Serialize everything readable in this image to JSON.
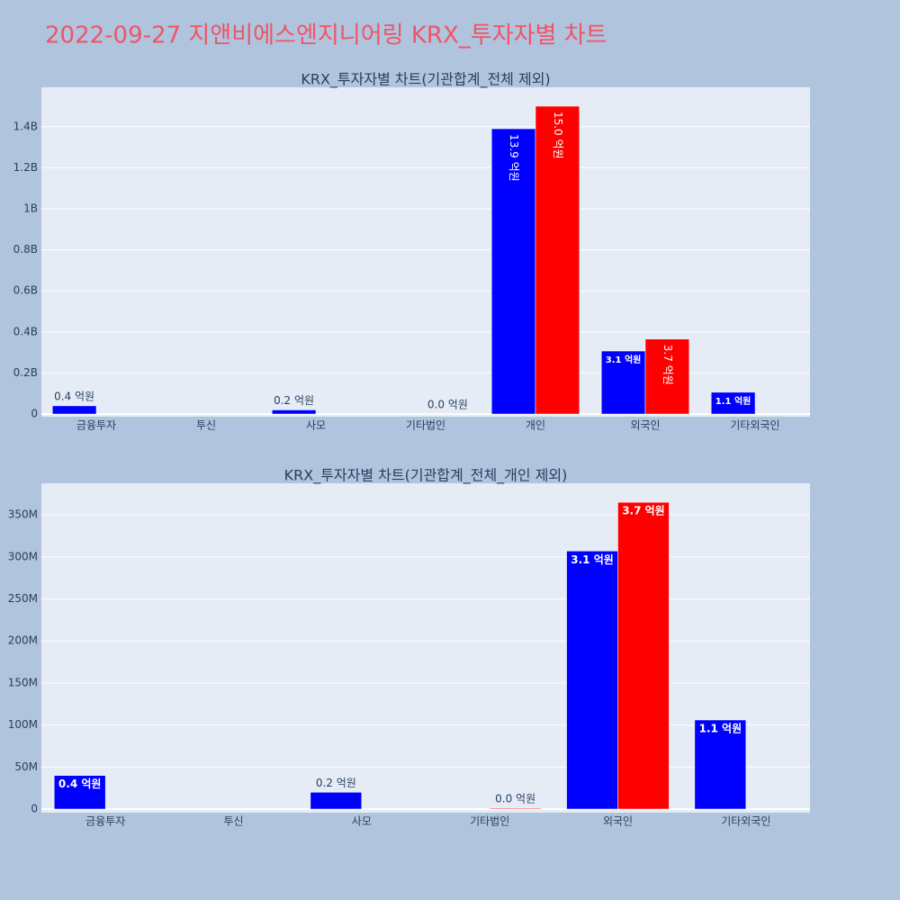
{
  "title": "2022-09-27 지앤비에스엔지니어링 KRX_투자자별 차트",
  "chart_data": [
    {
      "type": "bar",
      "title": "KRX_투자자별 차트(기관합계_전체 제외)",
      "categories": [
        "금융투자",
        "투신",
        "사모",
        "기타법인",
        "개인",
        "외국인",
        "기타외국인"
      ],
      "series": [
        {
          "color": "#0000ff",
          "values": [
            40000000,
            null,
            20000000,
            null,
            1390000000,
            307000000,
            106000000
          ],
          "value_labels": [
            "0.4 억원",
            null,
            "0.2 억원",
            null,
            "13.9 억원",
            "3.1 억원",
            "1.1 억원"
          ]
        },
        {
          "color": "#ff0000",
          "values": [
            null,
            null,
            null,
            1000000,
            1500000000,
            365000000,
            null
          ],
          "value_labels": [
            null,
            null,
            null,
            "0.0 억원",
            "15.0 억원",
            "3.7 억원",
            null
          ]
        }
      ],
      "ylim": [
        -13000000,
        1592000000
      ],
      "yticks": [
        0,
        {
          "value": 200000000,
          "label": "0.2B"
        },
        {
          "value": 400000000,
          "label": "0.4B"
        },
        {
          "value": 600000000,
          "label": "0.6B"
        },
        {
          "value": 800000000,
          "label": "0.8B"
        },
        {
          "value": 1000000000,
          "label": "1B"
        },
        {
          "value": 1200000000,
          "label": "1.2B"
        },
        {
          "value": 1400000000,
          "label": "1.4B"
        }
      ],
      "grid": true
    },
    {
      "type": "bar",
      "title": "KRX_투자자별 차트(기관합계_전체_개인 제외)",
      "categories": [
        "금융투자",
        "투신",
        "사모",
        "기타법인",
        "외국인",
        "기타외국인"
      ],
      "series": [
        {
          "color": "#0000ff",
          "values": [
            40000000,
            null,
            20000000,
            null,
            307000000,
            106000000
          ],
          "value_labels": [
            "0.4 억원",
            null,
            "0.2 억원",
            null,
            "3.1 억원",
            "1.1 억원"
          ]
        },
        {
          "color": "#ff0000",
          "values": [
            null,
            null,
            null,
            1000000,
            365000000,
            null
          ],
          "value_labels": [
            null,
            null,
            null,
            "0.0 억원",
            "3.7 억원",
            null
          ]
        }
      ],
      "ylim": [
        -4300000,
        387600000
      ],
      "yticks": [
        0,
        {
          "value": 50000000,
          "label": "50M"
        },
        {
          "value": 100000000,
          "label": "100M"
        },
        {
          "value": 150000000,
          "label": "150M"
        },
        {
          "value": 200000000,
          "label": "200M"
        },
        {
          "value": 250000000,
          "label": "250M"
        },
        {
          "value": 300000000,
          "label": "300M"
        },
        {
          "value": 350000000,
          "label": "350M"
        }
      ],
      "grid": true
    }
  ]
}
